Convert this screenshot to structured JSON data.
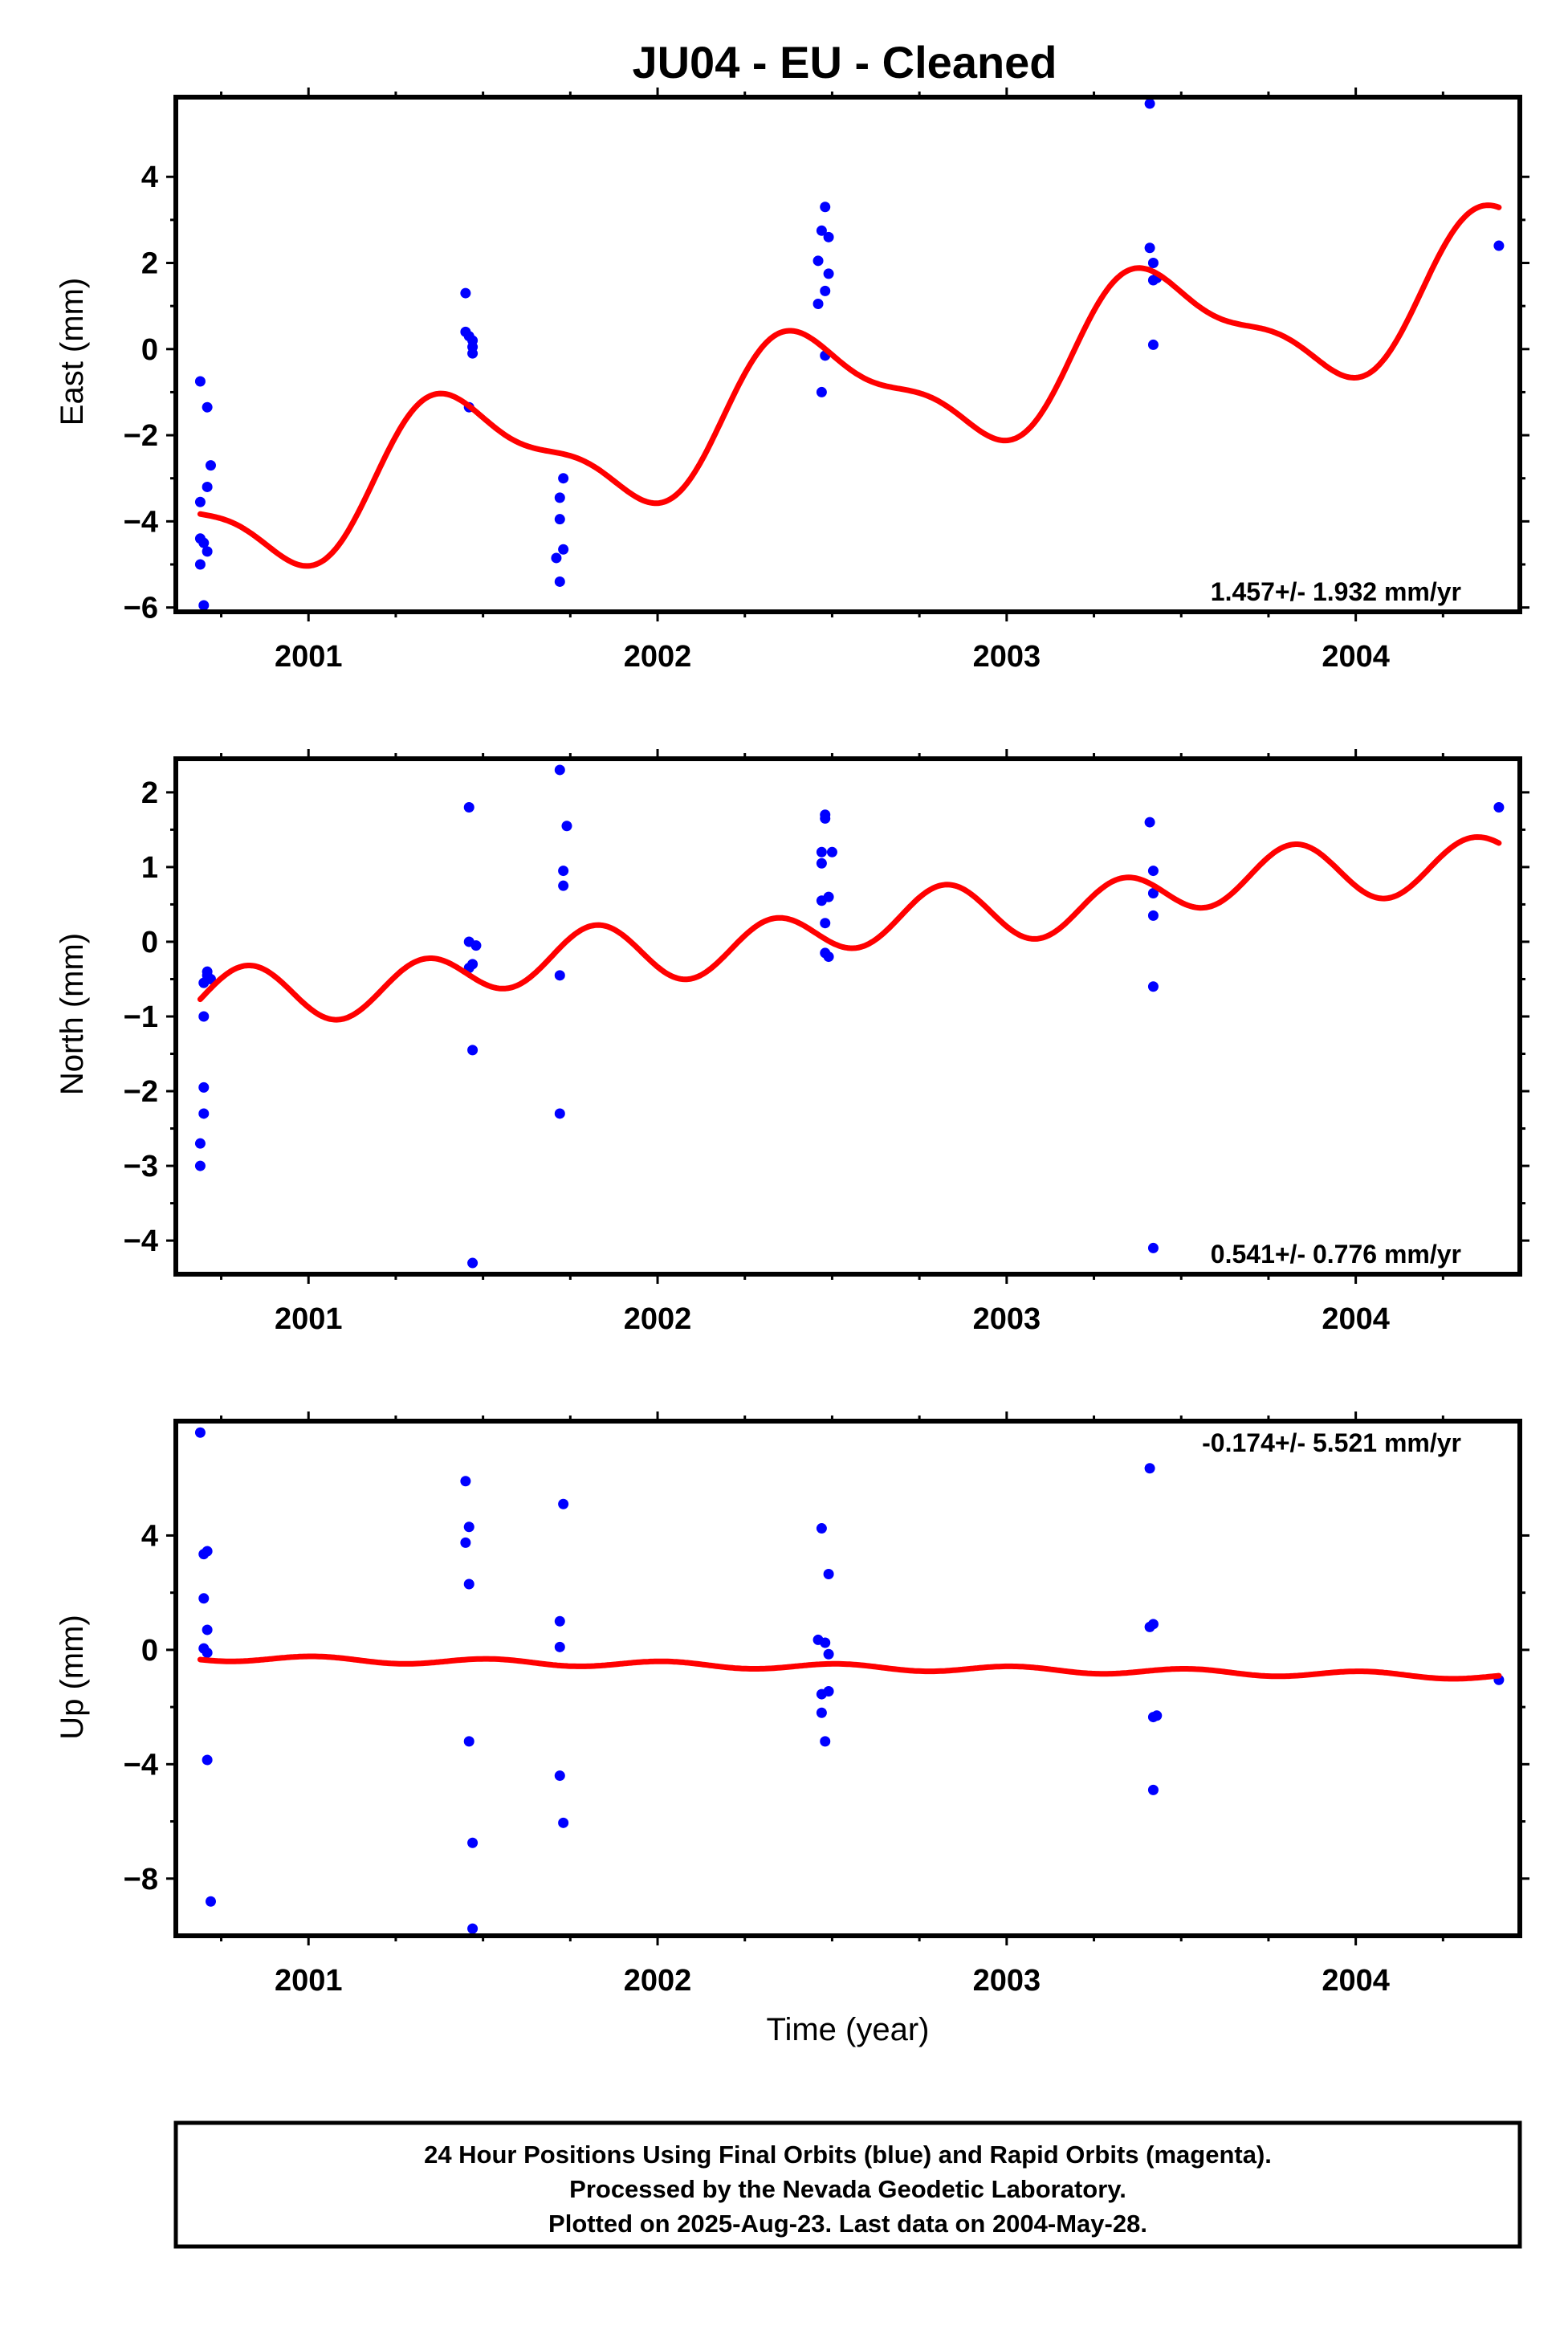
{
  "title": "JU04  - EU - Cleaned",
  "xlabel": "Time (year)",
  "colors": {
    "points": "#0000ff",
    "fit": "#ff0000",
    "frame": "#000000"
  },
  "footer": {
    "line1": "24 Hour Positions Using Final Orbits (blue) and Rapid Orbits (magenta).",
    "line2": "Processed by the Nevada Geodetic Laboratory.",
    "line3": "Plotted on 2025-Aug-23. Last data on 2004-May-28."
  },
  "chart_data": [
    {
      "type": "scatter",
      "id": "east",
      "ylabel": "East (mm)",
      "rate_label": "1.457+/- 1.932 mm/yr",
      "xlim": [
        2000.62,
        2004.47
      ],
      "ylim": [
        -6.1,
        5.85
      ],
      "xticks": [
        2001,
        2002,
        2003,
        2004
      ],
      "xtick_labels": [
        "2001",
        "2002",
        "2003",
        "2004"
      ],
      "yticks": [
        -6,
        -4,
        -2,
        0,
        2,
        4
      ],
      "ytick_labels": [
        "−6",
        "−4",
        "−2",
        "0",
        "2",
        "4"
      ],
      "points": [
        [
          2000.69,
          -0.75
        ],
        [
          2000.69,
          -3.55
        ],
        [
          2000.69,
          -4.4
        ],
        [
          2000.69,
          -5.0
        ],
        [
          2000.7,
          -4.5
        ],
        [
          2000.7,
          -5.95
        ],
        [
          2000.71,
          -3.2
        ],
        [
          2000.71,
          -4.7
        ],
        [
          2000.71,
          -1.35
        ],
        [
          2000.72,
          -2.7
        ],
        [
          2001.45,
          1.3
        ],
        [
          2001.45,
          0.4
        ],
        [
          2001.46,
          -1.35
        ],
        [
          2001.46,
          0.3
        ],
        [
          2001.47,
          0.2
        ],
        [
          2001.47,
          -0.1
        ],
        [
          2001.47,
          0.05
        ],
        [
          2001.71,
          -4.85
        ],
        [
          2001.72,
          -3.95
        ],
        [
          2001.72,
          -3.45
        ],
        [
          2001.72,
          -5.4
        ],
        [
          2001.73,
          -4.65
        ],
        [
          2001.73,
          -3.0
        ],
        [
          2002.46,
          2.05
        ],
        [
          2002.46,
          1.05
        ],
        [
          2002.47,
          -1.0
        ],
        [
          2002.47,
          2.75
        ],
        [
          2002.48,
          3.3
        ],
        [
          2002.48,
          -0.15
        ],
        [
          2002.48,
          1.35
        ],
        [
          2002.49,
          2.6
        ],
        [
          2002.49,
          1.75
        ],
        [
          2003.41,
          5.7
        ],
        [
          2003.41,
          2.35
        ],
        [
          2003.42,
          1.6
        ],
        [
          2003.42,
          0.1
        ],
        [
          2003.42,
          2.0
        ],
        [
          2003.43,
          1.65
        ],
        [
          2004.41,
          2.4
        ]
      ],
      "fit": {
        "x0": 2000.69,
        "x1": 2004.41,
        "epoch": 2000.69,
        "offset": -3.78,
        "rate": 1.457,
        "annual_cos": -0.05,
        "annual_sin": -1.48,
        "semiannual_cos": 0.0,
        "semiannual_sin": 0.51
      }
    },
    {
      "type": "scatter",
      "id": "north",
      "ylabel": "North (mm)",
      "rate_label": "0.541+/- 0.776 mm/yr",
      "xlim": [
        2000.62,
        2004.47
      ],
      "ylim": [
        -4.45,
        2.45
      ],
      "xticks": [
        2001,
        2002,
        2003,
        2004
      ],
      "xtick_labels": [
        "2001",
        "2002",
        "2003",
        "2004"
      ],
      "yticks": [
        -4,
        -3,
        -2,
        -1,
        0,
        1,
        2
      ],
      "ytick_labels": [
        "−4",
        "−3",
        "−2",
        "−1",
        "0",
        "1",
        "2"
      ],
      "points": [
        [
          2000.69,
          -3.0
        ],
        [
          2000.69,
          -2.7
        ],
        [
          2000.7,
          -2.3
        ],
        [
          2000.7,
          -1.95
        ],
        [
          2000.7,
          -1.0
        ],
        [
          2000.7,
          -0.55
        ],
        [
          2000.71,
          -0.4
        ],
        [
          2000.71,
          -0.45
        ],
        [
          2000.72,
          -0.5
        ],
        [
          2001.46,
          1.8
        ],
        [
          2001.46,
          0.0
        ],
        [
          2001.46,
          -0.35
        ],
        [
          2001.47,
          -1.45
        ],
        [
          2001.47,
          -4.3
        ],
        [
          2001.47,
          -0.3
        ],
        [
          2001.48,
          -0.05
        ],
        [
          2001.72,
          2.3
        ],
        [
          2001.72,
          -0.45
        ],
        [
          2001.72,
          -2.3
        ],
        [
          2001.73,
          0.75
        ],
        [
          2001.73,
          0.95
        ],
        [
          2001.74,
          1.55
        ],
        [
          2002.47,
          1.05
        ],
        [
          2002.47,
          1.2
        ],
        [
          2002.47,
          0.55
        ],
        [
          2002.48,
          1.65
        ],
        [
          2002.48,
          1.7
        ],
        [
          2002.48,
          0.25
        ],
        [
          2002.48,
          -0.15
        ],
        [
          2002.49,
          -0.2
        ],
        [
          2002.49,
          0.6
        ],
        [
          2002.5,
          1.2
        ],
        [
          2003.41,
          1.6
        ],
        [
          2003.42,
          0.95
        ],
        [
          2003.42,
          0.65
        ],
        [
          2003.42,
          0.35
        ],
        [
          2003.42,
          -0.6
        ],
        [
          2003.42,
          -4.1
        ],
        [
          2004.41,
          1.8
        ]
      ],
      "fit": {
        "x0": 2000.69,
        "x1": 2004.41,
        "epoch": 2000.69,
        "offset": -0.83,
        "rate": 0.541,
        "annual_cos": 0.12,
        "annual_sin": 0.02,
        "semiannual_cos": -0.06,
        "semiannual_sin": 0.34
      }
    },
    {
      "type": "scatter",
      "id": "up",
      "ylabel": "Up (mm)",
      "rate_label": "-0.174+/- 5.521 mm/yr",
      "xlim": [
        2000.62,
        2004.47
      ],
      "ylim": [
        -10.0,
        8.0
      ],
      "xticks": [
        2001,
        2002,
        2003,
        2004
      ],
      "xtick_labels": [
        "2001",
        "2002",
        "2003",
        "2004"
      ],
      "yticks": [
        -8,
        -4,
        0,
        4
      ],
      "ytick_labels": [
        "−8",
        "−4",
        "0",
        "4"
      ],
      "points": [
        [
          2000.69,
          7.6
        ],
        [
          2000.7,
          3.35
        ],
        [
          2000.7,
          1.8
        ],
        [
          2000.7,
          0.05
        ],
        [
          2000.71,
          0.7
        ],
        [
          2000.71,
          -0.1
        ],
        [
          2000.71,
          3.45
        ],
        [
          2000.71,
          -3.85
        ],
        [
          2000.72,
          -8.8
        ],
        [
          2001.45,
          5.9
        ],
        [
          2001.45,
          3.75
        ],
        [
          2001.46,
          4.3
        ],
        [
          2001.46,
          2.3
        ],
        [
          2001.46,
          -3.2
        ],
        [
          2001.47,
          -6.75
        ],
        [
          2001.47,
          -9.75
        ],
        [
          2001.72,
          1.0
        ],
        [
          2001.72,
          0.1
        ],
        [
          2001.72,
          -4.4
        ],
        [
          2001.73,
          -6.05
        ],
        [
          2001.73,
          5.1
        ],
        [
          2002.46,
          0.35
        ],
        [
          2002.47,
          -1.55
        ],
        [
          2002.47,
          -2.2
        ],
        [
          2002.47,
          4.25
        ],
        [
          2002.48,
          -3.2
        ],
        [
          2002.48,
          0.25
        ],
        [
          2002.49,
          2.65
        ],
        [
          2002.49,
          -1.45
        ],
        [
          2002.49,
          -0.15
        ],
        [
          2003.41,
          6.35
        ],
        [
          2003.41,
          0.8
        ],
        [
          2003.42,
          -2.35
        ],
        [
          2003.42,
          -4.9
        ],
        [
          2003.42,
          0.9
        ],
        [
          2003.43,
          -2.3
        ],
        [
          2004.41,
          -1.05
        ]
      ],
      "fit": {
        "x0": 2000.69,
        "x1": 2004.41,
        "epoch": 2000.69,
        "offset": -0.28,
        "rate": -0.174,
        "annual_cos": 0.0,
        "annual_sin": 0.0,
        "semiannual_cos": -0.06,
        "semiannual_sin": -0.09
      }
    }
  ]
}
